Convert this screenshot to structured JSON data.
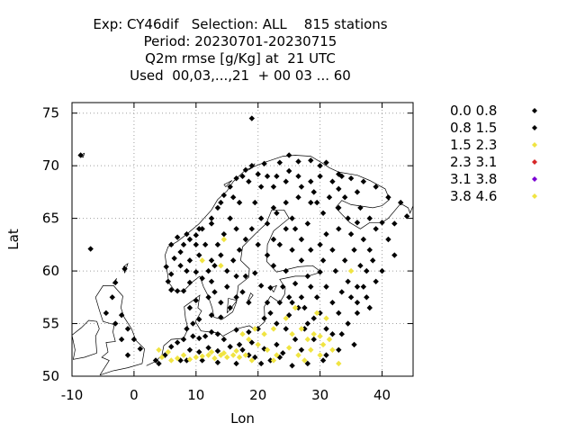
{
  "title_lines": [
    "Exp: CY46dif   Selection: ALL    815 stations",
    "Period: 20230701-20230715",
    "Q2m rmse [g/Kg] at  21 UTC",
    "Used  00,03,...,21  + 00 03 ... 60"
  ],
  "chart_data": {
    "type": "scatter",
    "xlabel": "Lon",
    "ylabel": "Lat",
    "xlim": [
      -10,
      45
    ],
    "ylim": [
      50,
      76
    ],
    "xticks": [
      -10,
      0,
      10,
      20,
      30,
      40
    ],
    "yticks": [
      50,
      55,
      60,
      65,
      70,
      75
    ],
    "grid": true,
    "legend_position": "outside-right",
    "classes": [
      {
        "name": "0.0 0.8",
        "color": "#000000"
      },
      {
        "name": "0.8 1.5",
        "color": "#000000"
      },
      {
        "name": "1.5 2.3",
        "color": "#f0e442"
      },
      {
        "name": "2.3 3.1",
        "color": "#d62728"
      },
      {
        "name": "3.1 3.8",
        "color": "#7b00d4"
      },
      {
        "name": "3.8 4.6",
        "color": "#f0e442"
      }
    ],
    "series": [
      {
        "name": "0.8 1.5",
        "values": [
          [
            -8.6,
            71.0
          ],
          [
            19.0,
            74.5
          ],
          [
            -7.0,
            62.1
          ],
          [
            -1.5,
            60.2
          ],
          [
            -3.0,
            58.9
          ],
          [
            -2.0,
            55.8
          ],
          [
            -1.0,
            54.5
          ],
          [
            0.0,
            53.5
          ],
          [
            1.0,
            52.6
          ],
          [
            5.2,
            60.4
          ],
          [
            5.5,
            59.0
          ],
          [
            6.0,
            58.2
          ],
          [
            7.0,
            58.1
          ],
          [
            8.0,
            58.1
          ],
          [
            9.0,
            58.9
          ],
          [
            10.0,
            59.9
          ],
          [
            11.0,
            59.3
          ],
          [
            6.0,
            62.5
          ],
          [
            7.0,
            63.2
          ],
          [
            8.5,
            63.5
          ],
          [
            10.0,
            63.4
          ],
          [
            11.0,
            64.0
          ],
          [
            12.5,
            65.0
          ],
          [
            13.5,
            66.0
          ],
          [
            14.5,
            67.2
          ],
          [
            15.5,
            68.0
          ],
          [
            16.5,
            68.8
          ],
          [
            18.0,
            69.6
          ],
          [
            19.0,
            70.0
          ],
          [
            21.0,
            70.2
          ],
          [
            23.5,
            70.3
          ],
          [
            25.0,
            71.0
          ],
          [
            26.5,
            70.4
          ],
          [
            28.5,
            70.5
          ],
          [
            30.0,
            70.0
          ],
          [
            31.0,
            70.3
          ],
          [
            33.0,
            69.2
          ],
          [
            35.0,
            68.8
          ],
          [
            37.0,
            68.5
          ],
          [
            39.0,
            68.0
          ],
          [
            41.0,
            67.0
          ],
          [
            43.0,
            66.5
          ],
          [
            44.0,
            65.2
          ],
          [
            42.0,
            64.5
          ],
          [
            40.0,
            64.6
          ],
          [
            38.0,
            65.0
          ],
          [
            36.0,
            64.6
          ],
          [
            34.5,
            65.0
          ],
          [
            33.0,
            66.0
          ],
          [
            36.0,
            67.5
          ],
          [
            33.0,
            67.8
          ],
          [
            30.0,
            69.0
          ],
          [
            28.5,
            68.5
          ],
          [
            26.5,
            69.0
          ],
          [
            24.5,
            68.5
          ],
          [
            22.5,
            68.0
          ],
          [
            20.5,
            68.0
          ],
          [
            18.5,
            68.5
          ],
          [
            17.0,
            66.5
          ],
          [
            15.5,
            65.0
          ],
          [
            14.5,
            63.5
          ],
          [
            13.5,
            62.5
          ],
          [
            12.5,
            61.0
          ],
          [
            12.0,
            60.0
          ],
          [
            13.0,
            58.0
          ],
          [
            12.0,
            57.5
          ],
          [
            14.0,
            57.0
          ],
          [
            15.5,
            56.5
          ],
          [
            14.0,
            55.6
          ],
          [
            12.5,
            55.8
          ],
          [
            10.5,
            55.4
          ],
          [
            9.5,
            55.0
          ],
          [
            9.0,
            56.5
          ],
          [
            10.0,
            57.2
          ],
          [
            8.5,
            54.5
          ],
          [
            8.0,
            53.5
          ],
          [
            9.5,
            53.8
          ],
          [
            10.5,
            53.6
          ],
          [
            11.5,
            53.8
          ],
          [
            12.5,
            54.2
          ],
          [
            13.5,
            54.0
          ],
          [
            14.5,
            53.5
          ],
          [
            7.0,
            53.2
          ],
          [
            6.0,
            52.8
          ],
          [
            9.0,
            52.5
          ],
          [
            10.5,
            52.3
          ],
          [
            12.0,
            52.7
          ],
          [
            13.5,
            52.4
          ],
          [
            15.5,
            52.8
          ],
          [
            17.0,
            53.0
          ],
          [
            19.0,
            53.2
          ],
          [
            21.0,
            52.6
          ],
          [
            23.0,
            53.0
          ],
          [
            24.5,
            54.5
          ],
          [
            23.0,
            55.0
          ],
          [
            21.0,
            55.5
          ],
          [
            20.0,
            54.5
          ],
          [
            18.5,
            54.2
          ],
          [
            16.5,
            54.4
          ],
          [
            17.5,
            52.5
          ],
          [
            19.5,
            51.8
          ],
          [
            22.0,
            51.5
          ],
          [
            25.5,
            51.0
          ],
          [
            27.0,
            52.5
          ],
          [
            29.0,
            53.5
          ],
          [
            31.0,
            52.0
          ],
          [
            33.0,
            52.5
          ],
          [
            35.5,
            53.0
          ],
          [
            34.5,
            55.0
          ],
          [
            36.0,
            56.0
          ],
          [
            37.5,
            57.5
          ],
          [
            36.0,
            58.5
          ],
          [
            33.5,
            58.0
          ],
          [
            32.0,
            57.0
          ],
          [
            30.0,
            56.0
          ],
          [
            28.0,
            55.0
          ],
          [
            26.5,
            56.5
          ],
          [
            25.0,
            57.5
          ],
          [
            24.0,
            58.5
          ],
          [
            24.5,
            60.0
          ],
          [
            22.5,
            60.5
          ],
          [
            21.5,
            61.5
          ],
          [
            22.5,
            63.0
          ],
          [
            24.5,
            64.0
          ],
          [
            25.5,
            65.0
          ],
          [
            27.0,
            63.0
          ],
          [
            28.5,
            62.0
          ],
          [
            30.0,
            62.5
          ],
          [
            31.0,
            63.5
          ],
          [
            30.5,
            65.5
          ],
          [
            28.5,
            66.5
          ],
          [
            26.5,
            67.0
          ],
          [
            24.5,
            66.5
          ],
          [
            22.5,
            66.0
          ],
          [
            20.5,
            65.0
          ],
          [
            19.0,
            64.0
          ],
          [
            18.0,
            63.0
          ],
          [
            17.0,
            62.0
          ],
          [
            16.0,
            61.0
          ],
          [
            15.0,
            60.0
          ],
          [
            16.5,
            59.5
          ],
          [
            18.0,
            59.5
          ],
          [
            19.5,
            59.8
          ],
          [
            20.5,
            58.6
          ],
          [
            22.0,
            58.4
          ],
          [
            26.0,
            58.8
          ],
          [
            28.0,
            59.5
          ],
          [
            30.0,
            59.9
          ],
          [
            32.5,
            60.0
          ],
          [
            34.0,
            61.0
          ],
          [
            35.5,
            62.0
          ],
          [
            37.0,
            63.0
          ],
          [
            38.5,
            61.0
          ],
          [
            37.5,
            60.0
          ],
          [
            39.0,
            59.0
          ],
          [
            36.0,
            57.0
          ],
          [
            38.0,
            56.5
          ],
          [
            33.5,
            54.0
          ],
          [
            31.0,
            54.5
          ],
          [
            27.5,
            54.5
          ],
          [
            26.0,
            53.5
          ],
          [
            24.0,
            52.2
          ],
          [
            29.5,
            57.5
          ],
          [
            27.0,
            57.5
          ],
          [
            28.5,
            58.5
          ],
          [
            31.0,
            58.5
          ],
          [
            34.5,
            59.0
          ],
          [
            36.5,
            60.5
          ],
          [
            38.0,
            62.0
          ],
          [
            35.0,
            63.5
          ],
          [
            33.0,
            64.0
          ],
          [
            32.0,
            62.0
          ],
          [
            30.5,
            61.0
          ],
          [
            27.0,
            61.0
          ],
          [
            25.5,
            62.0
          ],
          [
            23.5,
            62.5
          ],
          [
            21.5,
            64.5
          ],
          [
            23.0,
            65.5
          ],
          [
            26.0,
            64.0
          ],
          [
            28.0,
            64.5
          ],
          [
            29.5,
            66.5
          ],
          [
            31.5,
            67.0
          ],
          [
            33.5,
            69.0
          ],
          [
            21.5,
            69.0
          ],
          [
            19.5,
            66.5
          ],
          [
            16.5,
            64.0
          ],
          [
            20.0,
            62.5
          ],
          [
            14.0,
            61.5
          ],
          [
            13.0,
            60.5
          ],
          [
            12.5,
            59.0
          ],
          [
            15.0,
            58.5
          ],
          [
            17.5,
            58.0
          ],
          [
            18.5,
            57.0
          ],
          [
            16.5,
            57.5
          ],
          [
            9.0,
            61.0
          ],
          [
            7.5,
            61.8
          ],
          [
            6.5,
            61.2
          ],
          [
            8.5,
            60.0
          ],
          [
            10.5,
            61.5
          ],
          [
            11.5,
            62.5
          ],
          [
            10.0,
            62.5
          ],
          [
            7.5,
            60.5
          ],
          [
            6.0,
            59.7
          ],
          [
            -3.5,
            57.5
          ],
          [
            -4.5,
            56.0
          ],
          [
            -3.0,
            55.0
          ],
          [
            -2.0,
            53.5
          ],
          [
            -1.0,
            52.0
          ],
          [
            3.5,
            51.5
          ],
          [
            5.0,
            52.0
          ],
          [
            4.0,
            51.2
          ],
          [
            7.5,
            51.5
          ],
          [
            8.5,
            51.5
          ],
          [
            11.0,
            51.5
          ],
          [
            13.5,
            51.3
          ],
          [
            16.5,
            51.2
          ],
          [
            18.5,
            52.0
          ],
          [
            20.5,
            51.2
          ],
          [
            23.5,
            51.8
          ],
          [
            28.0,
            51.2
          ],
          [
            30.5,
            51.5
          ],
          [
            32.0,
            54.0
          ],
          [
            29.0,
            55.5
          ],
          [
            25.0,
            55.8
          ],
          [
            22.0,
            56.0
          ],
          [
            21.5,
            57.0
          ],
          [
            23.5,
            57.0
          ],
          [
            25.5,
            57.0
          ],
          [
            27.5,
            56.5
          ],
          [
            33.0,
            56.0
          ],
          [
            35.0,
            57.5
          ],
          [
            37.0,
            58.5
          ],
          [
            40.0,
            60.0
          ],
          [
            42.0,
            61.5
          ],
          [
            41.0,
            63.0
          ],
          [
            39.0,
            64.0
          ],
          [
            36.5,
            66.0
          ],
          [
            34.0,
            67.0
          ],
          [
            32.0,
            68.5
          ],
          [
            29.0,
            67.5
          ],
          [
            27.0,
            68.0
          ],
          [
            25.0,
            69.5
          ],
          [
            23.0,
            69.0
          ],
          [
            20.0,
            69.2
          ],
          [
            17.5,
            69.0
          ],
          [
            16.0,
            67.0
          ],
          [
            14.0,
            66.5
          ],
          [
            12.5,
            64.5
          ],
          [
            10.5,
            64.0
          ],
          [
            9.0,
            63.0
          ],
          [
            8.0,
            62.5
          ]
        ]
      },
      {
        "name": "1.5 2.3",
        "values": [
          [
            14.5,
            63.0
          ],
          [
            14.0,
            60.5
          ],
          [
            11.0,
            61.0
          ],
          [
            26.0,
            56.5
          ],
          [
            24.5,
            55.5
          ],
          [
            27.0,
            54.5
          ],
          [
            29.0,
            54.0
          ],
          [
            30.5,
            53.0
          ],
          [
            31.5,
            53.5
          ],
          [
            32.0,
            52.5
          ],
          [
            33.0,
            51.2
          ],
          [
            30.0,
            53.8
          ],
          [
            28.5,
            52.5
          ],
          [
            27.5,
            51.5
          ],
          [
            26.5,
            52.0
          ],
          [
            25.0,
            52.7
          ],
          [
            23.0,
            52.0
          ],
          [
            22.5,
            51.5
          ],
          [
            21.5,
            52.5
          ],
          [
            20.0,
            53.0
          ],
          [
            19.0,
            51.5
          ],
          [
            18.0,
            52.0
          ],
          [
            17.0,
            51.8
          ],
          [
            16.0,
            52.0
          ],
          [
            15.0,
            51.8
          ],
          [
            14.0,
            52.0
          ],
          [
            13.0,
            51.7
          ],
          [
            12.0,
            52.0
          ],
          [
            11.0,
            51.9
          ],
          [
            10.0,
            51.8
          ],
          [
            9.0,
            51.6
          ],
          [
            8.0,
            52.0
          ],
          [
            7.0,
            51.7
          ],
          [
            6.0,
            51.5
          ],
          [
            5.5,
            52.3
          ],
          [
            4.5,
            51.8
          ],
          [
            4.0,
            52.5
          ],
          [
            12.5,
            52.3
          ],
          [
            14.5,
            52.2
          ],
          [
            16.5,
            52.4
          ],
          [
            18.5,
            53.5
          ],
          [
            17.5,
            54.0
          ],
          [
            19.5,
            54.5
          ],
          [
            21.0,
            54.0
          ],
          [
            22.5,
            54.5
          ],
          [
            29.5,
            56.0
          ],
          [
            31.0,
            55.5
          ],
          [
            25.5,
            54.0
          ],
          [
            28.0,
            53.5
          ],
          [
            30.0,
            52.0
          ]
        ]
      },
      {
        "name": "3.8 4.6",
        "values": [
          [
            35.0,
            60.0
          ]
        ]
      }
    ]
  }
}
